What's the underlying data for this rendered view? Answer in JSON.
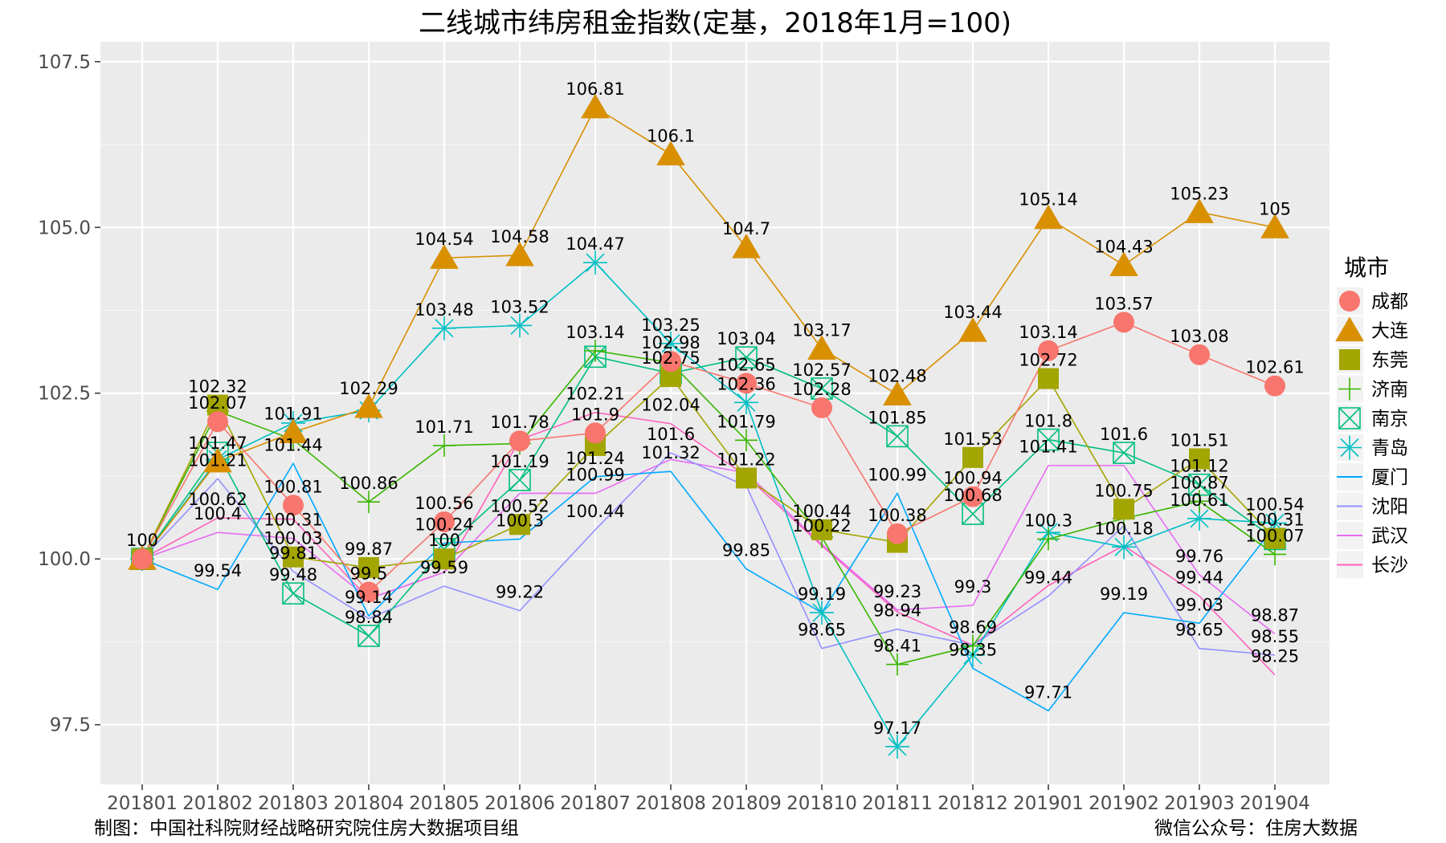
{
  "footer": {
    "left": "制图：中国社科院财经战略研究院住房大数据项目组",
    "right": "微信公众号：住房大数据"
  },
  "legend": {
    "title": "城市"
  },
  "chart_data": {
    "type": "line",
    "title": "二线城市纬房租金指数(定基，2018年1月=100)",
    "xlabel": "",
    "ylabel": "",
    "categories": [
      "201801",
      "201802",
      "201803",
      "201804",
      "201805",
      "201806",
      "201807",
      "201808",
      "201809",
      "201810",
      "201811",
      "201812",
      "201901",
      "201902",
      "201903",
      "201904"
    ],
    "ylim": [
      96.6,
      107.8
    ],
    "yticks": [
      97.5,
      100.0,
      102.5,
      105.0,
      107.5
    ],
    "ytick_labels": [
      "97.5",
      "100.0",
      "102.5",
      "105.0",
      "107.5"
    ],
    "grid": true,
    "legend_position": "right",
    "series": [
      {
        "name": "成都",
        "color": "#F8766D",
        "marker": "circle",
        "values": [
          100,
          102.07,
          100.81,
          99.5,
          100.56,
          101.78,
          101.9,
          102.98,
          102.65,
          102.28,
          100.38,
          100.94,
          103.14,
          103.57,
          103.08,
          102.61
        ],
        "labels": [
          "100",
          "102.07",
          "100.81",
          "99.5",
          "100.56",
          "101.78",
          "101.9",
          "102.98",
          "102.65",
          "102.28",
          "100.38",
          "100.94",
          "103.14",
          "103.57",
          "103.08",
          "102.61"
        ]
      },
      {
        "name": "大连",
        "color": "#D89000",
        "marker": "triangle",
        "values": [
          100,
          101.47,
          101.91,
          102.29,
          104.54,
          104.58,
          106.81,
          106.1,
          104.7,
          103.17,
          102.48,
          103.44,
          105.14,
          104.43,
          105.23,
          105
        ],
        "labels": [
          "",
          "101.47",
          "101.91",
          "102.29",
          "104.54",
          "104.58",
          "106.81",
          "106.1",
          "104.7",
          "103.17",
          "102.48",
          "103.44",
          "105.14",
          "104.43",
          "105.23",
          "105"
        ]
      },
      {
        "name": "东莞",
        "color": "#A3A500",
        "marker": "square",
        "values": [
          100,
          102.32,
          100.03,
          99.87,
          100,
          100.52,
          101.71,
          102.75,
          101.22,
          100.44,
          100.25,
          101.53,
          102.72,
          100.75,
          101.51,
          100.31
        ],
        "labels": [
          "",
          "102.32",
          "100.03",
          "99.87",
          "100",
          "100.52",
          "",
          "102.75",
          "101.22",
          "100.44",
          "",
          "101.53",
          "102.72",
          "100.75",
          "101.51",
          "100.31"
        ]
      },
      {
        "name": "济南",
        "color": "#39B600",
        "marker": "plus",
        "values": [
          100,
          102.23,
          101.8,
          100.86,
          101.71,
          101.74,
          103.14,
          102.96,
          101.79,
          100.33,
          98.41,
          98.69,
          100.3,
          100.61,
          100.87,
          100.07
        ],
        "labels": [
          "",
          "",
          "",
          "100.86",
          "101.71",
          "",
          "103.14",
          "",
          "101.79",
          "",
          "98.41",
          "98.69",
          "100.3",
          "",
          "100.87",
          "100.07"
        ]
      },
      {
        "name": "南京",
        "color": "#00BF7D",
        "marker": "boxcross",
        "values": [
          100,
          101.6,
          99.48,
          98.84,
          100.15,
          101.19,
          103.05,
          102.8,
          103.04,
          102.57,
          101.85,
          100.68,
          101.8,
          101.6,
          101.12,
          100.3
        ],
        "labels": [
          "",
          "",
          "99.48",
          "98.84",
          "",
          "101.19",
          "",
          "",
          "103.04",
          "102.57",
          "101.85",
          "100.68",
          "101.8",
          "101.6",
          "101.12",
          ""
        ]
      },
      {
        "name": "青岛",
        "color": "#00BFC4",
        "marker": "star",
        "values": [
          100,
          101.5,
          102.05,
          102.24,
          103.48,
          103.52,
          104.47,
          103.25,
          102.36,
          99.19,
          97.17,
          98.55,
          100.4,
          100.18,
          100.61,
          100.54
        ],
        "labels": [
          "",
          "",
          "",
          "",
          "103.48",
          "103.52",
          "104.47",
          "103.25",
          "102.36",
          "99.19",
          "97.17",
          "",
          "",
          "100.18",
          "100.61",
          "100.54"
        ]
      },
      {
        "name": "厦门",
        "color": "#00A9FF",
        "marker": "line",
        "values": [
          100,
          99.54,
          101.44,
          99.14,
          100.24,
          100.3,
          101.24,
          101.32,
          99.85,
          99.19,
          100.99,
          98.35,
          97.71,
          99.19,
          99.03,
          100.5
        ],
        "labels": [
          "",
          "99.54",
          "101.44",
          "99.14",
          "100.24",
          "100.3",
          "101.24",
          "101.32",
          "99.85",
          "",
          "100.99",
          "98.35",
          "97.71",
          "99.19",
          "99.03",
          ""
        ]
      },
      {
        "name": "沈阳",
        "color": "#9590FF",
        "marker": "line",
        "values": [
          100,
          101.21,
          99.81,
          99.1,
          99.59,
          99.22,
          100.44,
          101.6,
          101.1,
          98.65,
          98.94,
          98.7,
          99.44,
          100.5,
          98.65,
          98.55
        ],
        "labels": [
          "",
          "101.21",
          "99.81",
          "",
          "99.59",
          "99.22",
          "100.44",
          "101.6",
          "",
          "98.65",
          "98.94",
          "",
          "99.44",
          "",
          "98.65",
          "98.55"
        ]
      },
      {
        "name": "武汉",
        "color": "#E76BF3",
        "marker": "line",
        "values": [
          100,
          100.4,
          100.31,
          99.4,
          99.8,
          100.99,
          100.99,
          101.5,
          101.3,
          100.22,
          99.23,
          99.3,
          101.41,
          101.41,
          99.76,
          98.87
        ],
        "labels": [
          "",
          "100.4",
          "100.31",
          "",
          "",
          "",
          "100.99",
          "",
          "",
          "100.22",
          "99.23",
          "99.3",
          "101.41",
          "",
          "99.76",
          "98.87"
        ]
      },
      {
        "name": "长沙",
        "color": "#FF62BC",
        "marker": "line",
        "values": [
          100,
          100.62,
          100.6,
          99.4,
          99.8,
          101.8,
          102.21,
          102.04,
          101.25,
          100.2,
          99.2,
          98.7,
          99.6,
          100.2,
          99.44,
          98.25
        ],
        "labels": [
          "",
          "100.62",
          "",
          "",
          "",
          "",
          "102.21",
          "102.04",
          "",
          "",
          "",
          "",
          "",
          "",
          "99.44",
          "98.25"
        ]
      }
    ]
  }
}
